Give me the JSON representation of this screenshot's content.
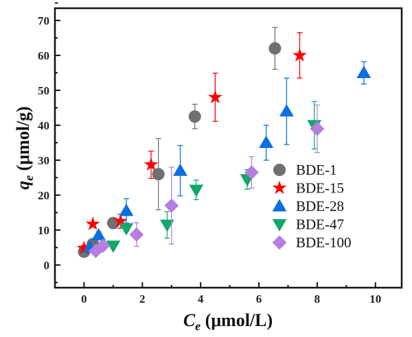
{
  "chart_data": {
    "type": "scatter",
    "xlabel": {
      "symbol": "C",
      "sub": "e",
      "unit": " (μmol/L)"
    },
    "ylabel": {
      "symbol": "q",
      "sub": "e",
      "unit": " (μmol/g)"
    },
    "xlim": [
      -1,
      10.9
    ],
    "ylim": [
      -6.5,
      73.5
    ],
    "xticks": [
      0,
      2,
      4,
      6,
      8,
      10
    ],
    "yticks": [
      0,
      10,
      20,
      30,
      40,
      50,
      60,
      70
    ],
    "grid": false,
    "legend": "bottom-right",
    "series": [
      {
        "name": "BDE-1",
        "marker": "circle",
        "color": "#707070",
        "points": [
          [
            0,
            3.8,
            0
          ],
          [
            0.3,
            6,
            1
          ],
          [
            1,
            12,
            1.5
          ],
          [
            2.55,
            26,
            10.2
          ],
          [
            3.8,
            42.5,
            3.5
          ],
          [
            6.55,
            62,
            6
          ]
        ]
      },
      {
        "name": "BDE-15",
        "marker": "star",
        "color": "#ff0000",
        "points": [
          [
            0,
            4.8,
            0.8
          ],
          [
            0.3,
            11.7,
            0
          ],
          [
            1.25,
            12.5,
            2
          ],
          [
            2.3,
            28.7,
            3.9
          ],
          [
            4.5,
            48,
            6.9
          ],
          [
            7.4,
            60,
            6.5
          ]
        ]
      },
      {
        "name": "BDE-28",
        "marker": "triangle-up",
        "color": "#0a6fe0",
        "points": [
          [
            0.2,
            5,
            1
          ],
          [
            0.5,
            8.5,
            1
          ],
          [
            1.45,
            15.5,
            3.5
          ],
          [
            3.3,
            27,
            7.2
          ],
          [
            6.25,
            35,
            5
          ],
          [
            6.95,
            44,
            9.5
          ],
          [
            9.6,
            55,
            3.2
          ]
        ]
      },
      {
        "name": "BDE-47",
        "marker": "triangle-down",
        "color": "#12a86a",
        "points": [
          [
            1.0,
            5.5,
            0.8
          ],
          [
            1.45,
            10.5,
            1
          ],
          [
            2.85,
            11.5,
            3.8
          ],
          [
            3.85,
            21.5,
            2.8
          ],
          [
            5.6,
            24.5,
            2.8
          ],
          [
            7.9,
            40,
            6.8
          ]
        ]
      },
      {
        "name": "BDE-100",
        "marker": "diamond",
        "color": "#b57ee0",
        "points": [
          [
            0.4,
            4,
            0.5
          ],
          [
            0.65,
            5.5,
            0.5
          ],
          [
            1.8,
            8.7,
            3.4
          ],
          [
            3.0,
            17,
            11
          ],
          [
            5.75,
            26.5,
            4.5
          ],
          [
            8.0,
            39,
            6.8
          ]
        ]
      }
    ]
  }
}
